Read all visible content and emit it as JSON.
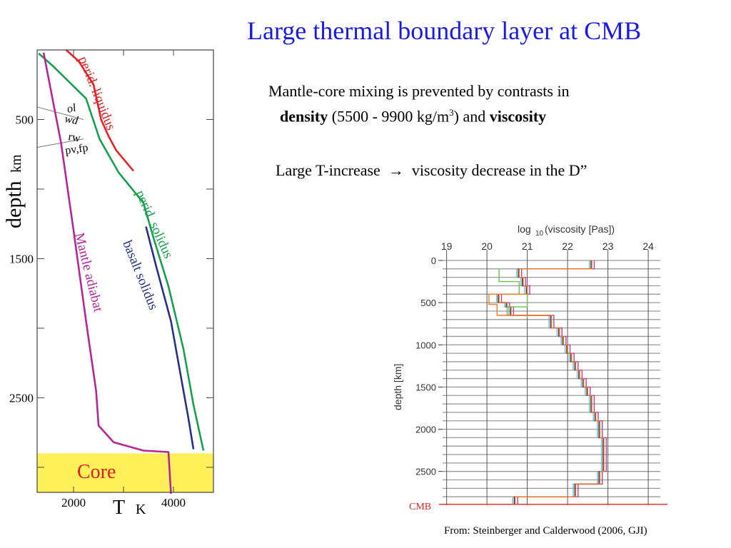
{
  "slide": {
    "title": "Large thermal boundary layer at CMB",
    "para1_line1": "Mantle-core mixing is prevented by contrasts in",
    "para1_bold1": "density",
    "para1_mid": " (5500 - 9900 kg/m",
    "para1_sup": "3",
    "para1_mid2": ") and ",
    "para1_bold2": "viscosity",
    "para2_left": "Large T-increase",
    "para2_arrow": "→",
    "para2_right": "viscosity decrease in the D”",
    "source": "From: Steinberger and Calderwood (2006, GJI)"
  },
  "chart_data": [
    {
      "type": "line",
      "xlabel": "T",
      "xunit": "K",
      "ylabel": "depth",
      "yunit": "km",
      "xticks": [
        2000,
        4000
      ],
      "yticks": [
        500,
        1500,
        2500
      ],
      "xlim": [
        1270,
        4800
      ],
      "ylim": [
        0,
        3180
      ],
      "y_inverted": true,
      "core_label": "Core",
      "core_top_depth": 2900,
      "colors": {
        "adiabat": "#b5259a",
        "liquidus": "#e02424",
        "solidus": "#16a04c",
        "basalt": "#26308c",
        "core_fill": "#fff05a",
        "core_text": "#e01e1e"
      },
      "series": [
        {
          "name": "perid. liquidus",
          "color": "#e02424",
          "points": [
            [
              1850,
              0
            ],
            [
              2100,
              80
            ],
            [
              2400,
              250
            ],
            [
              2550,
              500
            ],
            [
              2700,
              620
            ],
            [
              2850,
              720
            ],
            [
              3200,
              870
            ]
          ]
        },
        {
          "name": "perid. solidus",
          "color": "#16a04c",
          "points": [
            [
              1300,
              25
            ],
            [
              1600,
              120
            ],
            [
              2250,
              350
            ],
            [
              2520,
              640
            ],
            [
              2900,
              880
            ],
            [
              3400,
              1100
            ],
            [
              3600,
              1350
            ],
            [
              3900,
              1700
            ],
            [
              4200,
              2150
            ],
            [
              4400,
              2550
            ],
            [
              4600,
              2880
            ]
          ]
        },
        {
          "name": "basalt solidus",
          "color": "#26308c",
          "points": [
            [
              3450,
              1270
            ],
            [
              3650,
              1550
            ],
            [
              3950,
              1950
            ],
            [
              4150,
              2350
            ],
            [
              4300,
              2650
            ],
            [
              4400,
              2870
            ]
          ]
        },
        {
          "name": "Mantle adiabat",
          "color": "#b5259a",
          "points": [
            [
              1400,
              20
            ],
            [
              1750,
              670
            ],
            [
              2000,
              1300
            ],
            [
              2250,
              1950
            ],
            [
              2450,
              2450
            ],
            [
              2500,
              2700
            ],
            [
              2800,
              2820
            ],
            [
              3400,
              2880
            ],
            [
              3900,
              2890
            ],
            [
              3950,
              3190
            ]
          ]
        }
      ],
      "phase_labels": [
        "ol",
        "wd",
        "rw",
        "pv,fp"
      ],
      "phase_boundaries": [
        {
          "x": [
            1270,
            2200
          ],
          "y": [
            410,
            500
          ]
        },
        {
          "x": [
            1270,
            2200
          ],
          "y": [
            700,
            640
          ]
        }
      ]
    },
    {
      "type": "line",
      "title": "log10(viscosity [Pas])",
      "title_main": "log",
      "title_sub": "10",
      "title_rest": "(viscosity [Pas])",
      "ylabel": "depth [km]",
      "xticks": [
        19,
        20,
        21,
        22,
        23,
        24
      ],
      "yticks": [
        0,
        500,
        1000,
        1500,
        2000,
        2500
      ],
      "xlim": [
        18.9,
        24.3
      ],
      "ylim": [
        0,
        2900
      ],
      "y_inverted": true,
      "cmb_label": "CMB",
      "cmb_depth": 2890,
      "colors": {
        "cmb_line": "#e02020",
        "orange": "#f07a2a",
        "green": "#6cc04a",
        "blue": "#6ab8e0",
        "magenta": "#c040a0",
        "dark": "#333333",
        "grid": "#9a9a9a"
      },
      "profile_steps": [
        [
          0,
          22.6
        ],
        [
          100,
          20.8
        ],
        [
          200,
          20.9
        ],
        [
          300,
          21.0
        ],
        [
          400,
          20.3
        ],
        [
          500,
          20.5
        ],
        [
          550,
          20.6
        ],
        [
          650,
          21.6
        ],
        [
          700,
          21.6
        ],
        [
          800,
          21.8
        ],
        [
          900,
          21.9
        ],
        [
          1000,
          22.0
        ],
        [
          1100,
          22.1
        ],
        [
          1200,
          22.2
        ],
        [
          1300,
          22.3
        ],
        [
          1400,
          22.4
        ],
        [
          1500,
          22.5
        ],
        [
          1600,
          22.6
        ],
        [
          1700,
          22.6
        ],
        [
          1800,
          22.7
        ],
        [
          1900,
          22.8
        ],
        [
          2000,
          22.8
        ],
        [
          2100,
          22.9
        ],
        [
          2200,
          22.9
        ],
        [
          2300,
          22.9
        ],
        [
          2400,
          22.9
        ],
        [
          2500,
          22.8
        ],
        [
          2600,
          22.8
        ],
        [
          2650,
          22.2
        ],
        [
          2800,
          20.7
        ]
      ]
    }
  ]
}
